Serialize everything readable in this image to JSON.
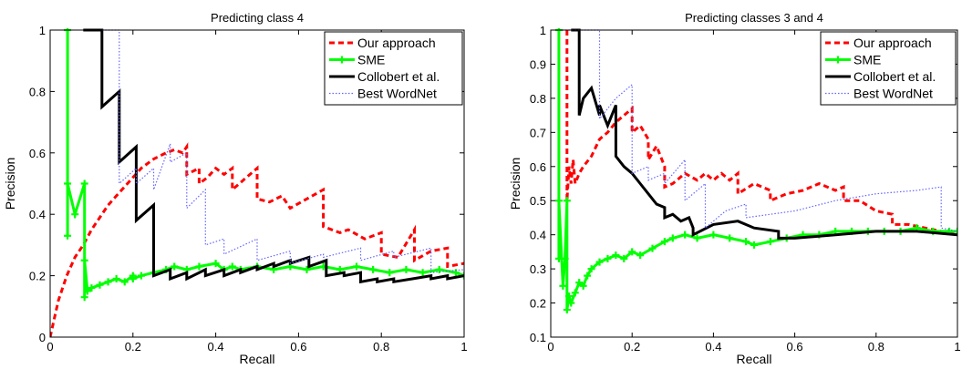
{
  "chart_data": [
    {
      "type": "line",
      "title": "Predicting class 4",
      "xlabel": "Recall",
      "ylabel": "Precision",
      "xlim": [
        0,
        1
      ],
      "ylim": [
        0,
        1
      ],
      "xticks": [
        0,
        0.2,
        0.4,
        0.6,
        0.8,
        1
      ],
      "yticks": [
        0,
        0.2,
        0.4,
        0.6,
        0.8,
        1
      ],
      "xtick_labels": [
        "0",
        "0.2",
        "0.4",
        "0.6",
        "0.8",
        "1"
      ],
      "ytick_labels": [
        "0",
        "0.2",
        "0.4",
        "0.6",
        "0.8",
        "1"
      ],
      "grid": false,
      "legend_position": "top-right",
      "series": [
        {
          "name": "Our approach",
          "color": "#ff0000",
          "style": "dashed",
          "x": [
            0.0,
            0.01,
            0.02,
            0.04,
            0.06,
            0.08,
            0.1,
            0.12,
            0.14,
            0.16,
            0.18,
            0.2,
            0.22,
            0.25,
            0.28,
            0.3,
            0.32,
            0.33,
            0.33,
            0.36,
            0.36,
            0.38,
            0.4,
            0.42,
            0.44,
            0.44,
            0.5,
            0.5,
            0.53,
            0.56,
            0.58,
            0.62,
            0.66,
            0.66,
            0.7,
            0.72,
            0.76,
            0.8,
            0.8,
            0.84,
            0.88,
            0.88,
            0.92,
            0.96,
            0.96,
            1.0
          ],
          "y": [
            0.0,
            0.06,
            0.12,
            0.2,
            0.26,
            0.3,
            0.35,
            0.39,
            0.43,
            0.46,
            0.49,
            0.52,
            0.55,
            0.58,
            0.6,
            0.61,
            0.6,
            0.62,
            0.53,
            0.55,
            0.5,
            0.52,
            0.55,
            0.53,
            0.55,
            0.48,
            0.55,
            0.45,
            0.44,
            0.46,
            0.42,
            0.45,
            0.48,
            0.36,
            0.34,
            0.35,
            0.32,
            0.34,
            0.27,
            0.26,
            0.35,
            0.25,
            0.28,
            0.29,
            0.23,
            0.24
          ]
        },
        {
          "name": "SME",
          "color": "#00ff00",
          "style": "solid-plus",
          "x": [
            0.042,
            0.042,
            0.042,
            0.06,
            0.083,
            0.083,
            0.083,
            0.09,
            0.1,
            0.12,
            0.14,
            0.16,
            0.18,
            0.2,
            0.2,
            0.22,
            0.25,
            0.28,
            0.3,
            0.33,
            0.36,
            0.4,
            0.42,
            0.44,
            0.46,
            0.5,
            0.54,
            0.58,
            0.62,
            0.66,
            0.7,
            0.74,
            0.78,
            0.82,
            0.86,
            0.9,
            0.94,
            0.98,
            1.0
          ],
          "y": [
            1.0,
            0.33,
            0.5,
            0.4,
            0.5,
            0.13,
            0.25,
            0.15,
            0.16,
            0.17,
            0.18,
            0.19,
            0.18,
            0.2,
            0.19,
            0.2,
            0.21,
            0.22,
            0.23,
            0.22,
            0.23,
            0.24,
            0.22,
            0.23,
            0.22,
            0.23,
            0.22,
            0.23,
            0.22,
            0.23,
            0.22,
            0.23,
            0.22,
            0.21,
            0.22,
            0.21,
            0.22,
            0.21,
            0.2
          ]
        },
        {
          "name": "Collobert et al.",
          "color": "#000000",
          "style": "solid",
          "x": [
            0.08,
            0.125,
            0.125,
            0.167,
            0.167,
            0.208,
            0.208,
            0.25,
            0.25,
            0.29,
            0.29,
            0.33,
            0.33,
            0.375,
            0.375,
            0.42,
            0.42,
            0.46,
            0.46,
            0.5,
            0.5,
            0.54,
            0.54,
            0.58,
            0.58,
            0.625,
            0.625,
            0.667,
            0.667,
            0.71,
            0.71,
            0.75,
            0.75,
            0.79,
            0.79,
            0.83,
            0.83,
            0.875,
            0.875,
            0.92,
            0.92,
            0.96,
            0.96,
            1.0
          ],
          "y": [
            1.0,
            1.0,
            0.75,
            0.8,
            0.57,
            0.62,
            0.38,
            0.43,
            0.2,
            0.22,
            0.19,
            0.21,
            0.19,
            0.22,
            0.2,
            0.22,
            0.2,
            0.22,
            0.21,
            0.23,
            0.22,
            0.24,
            0.23,
            0.25,
            0.24,
            0.26,
            0.23,
            0.25,
            0.2,
            0.21,
            0.2,
            0.21,
            0.18,
            0.19,
            0.18,
            0.19,
            0.18,
            0.19,
            0.19,
            0.2,
            0.19,
            0.2,
            0.19,
            0.2
          ]
        },
        {
          "name": "Best WordNet",
          "color": "#6666ff",
          "style": "dotted",
          "x": [
            0.125,
            0.167,
            0.167,
            0.208,
            0.208,
            0.25,
            0.25,
            0.29,
            0.29,
            0.33,
            0.33,
            0.375,
            0.375,
            0.42,
            0.42,
            0.5,
            0.5,
            0.58,
            0.58,
            0.66,
            0.66,
            0.75,
            0.75,
            0.83,
            0.83,
            0.92,
            0.92,
            1.0
          ],
          "y": [
            1.0,
            1.0,
            0.5,
            0.55,
            0.5,
            0.55,
            0.48,
            0.63,
            0.57,
            0.6,
            0.42,
            0.48,
            0.3,
            0.32,
            0.27,
            0.32,
            0.25,
            0.28,
            0.24,
            0.27,
            0.26,
            0.29,
            0.25,
            0.28,
            0.26,
            0.29,
            0.21,
            0.22
          ]
        }
      ]
    },
    {
      "type": "line",
      "title": "Predicting classes 3 and 4",
      "xlabel": "Recall",
      "ylabel": "Precision",
      "xlim": [
        0,
        1
      ],
      "ylim": [
        0.1,
        1
      ],
      "xticks": [
        0,
        0.2,
        0.4,
        0.6,
        0.8,
        1
      ],
      "yticks": [
        0.1,
        0.2,
        0.3,
        0.4,
        0.5,
        0.6,
        0.7,
        0.8,
        0.9,
        1
      ],
      "xtick_labels": [
        "0",
        "0.2",
        "0.4",
        "0.6",
        "0.8",
        "1"
      ],
      "ytick_labels": [
        "0.1",
        "0.2",
        "0.3",
        "0.4",
        "0.5",
        "0.6",
        "0.7",
        "0.8",
        "0.9",
        "1"
      ],
      "grid": false,
      "legend_position": "top-right",
      "series": [
        {
          "name": "Our approach",
          "color": "#ff0000",
          "style": "dashed",
          "x": [
            0.04,
            0.04,
            0.045,
            0.05,
            0.055,
            0.06,
            0.07,
            0.08,
            0.1,
            0.12,
            0.14,
            0.16,
            0.18,
            0.2,
            0.2,
            0.22,
            0.24,
            0.24,
            0.26,
            0.28,
            0.28,
            0.3,
            0.33,
            0.36,
            0.38,
            0.4,
            0.42,
            0.44,
            0.46,
            0.46,
            0.5,
            0.54,
            0.54,
            0.58,
            0.62,
            0.66,
            0.7,
            0.72,
            0.72,
            0.76,
            0.8,
            0.84,
            0.84,
            0.88,
            0.92,
            0.96,
            1.0
          ],
          "y": [
            1.0,
            0.5,
            0.6,
            0.55,
            0.62,
            0.55,
            0.58,
            0.6,
            0.63,
            0.68,
            0.7,
            0.73,
            0.75,
            0.77,
            0.7,
            0.72,
            0.68,
            0.62,
            0.66,
            0.6,
            0.54,
            0.55,
            0.58,
            0.56,
            0.58,
            0.56,
            0.58,
            0.56,
            0.58,
            0.52,
            0.55,
            0.53,
            0.5,
            0.52,
            0.53,
            0.55,
            0.53,
            0.54,
            0.5,
            0.5,
            0.47,
            0.46,
            0.43,
            0.43,
            0.42,
            0.41,
            0.4
          ]
        },
        {
          "name": "SME",
          "color": "#00ff00",
          "style": "solid-plus",
          "x": [
            0.02,
            0.02,
            0.02,
            0.03,
            0.035,
            0.04,
            0.04,
            0.045,
            0.05,
            0.06,
            0.07,
            0.08,
            0.09,
            0.1,
            0.12,
            0.14,
            0.16,
            0.18,
            0.2,
            0.22,
            0.25,
            0.28,
            0.3,
            0.33,
            0.36,
            0.4,
            0.44,
            0.48,
            0.5,
            0.54,
            0.58,
            0.62,
            0.66,
            0.7,
            0.74,
            0.78,
            0.82,
            0.86,
            0.9,
            0.94,
            0.98,
            1.0
          ],
          "y": [
            1.0,
            0.33,
            0.5,
            0.25,
            0.33,
            0.5,
            0.18,
            0.22,
            0.2,
            0.23,
            0.26,
            0.25,
            0.28,
            0.3,
            0.32,
            0.33,
            0.34,
            0.33,
            0.35,
            0.34,
            0.36,
            0.38,
            0.39,
            0.4,
            0.39,
            0.4,
            0.39,
            0.38,
            0.37,
            0.38,
            0.39,
            0.4,
            0.4,
            0.41,
            0.41,
            0.41,
            0.41,
            0.41,
            0.42,
            0.41,
            0.41,
            0.41
          ]
        },
        {
          "name": "Collobert et al.",
          "color": "#000000",
          "style": "solid",
          "x": [
            0.05,
            0.07,
            0.07,
            0.08,
            0.1,
            0.12,
            0.12,
            0.14,
            0.16,
            0.16,
            0.18,
            0.2,
            0.22,
            0.24,
            0.26,
            0.28,
            0.28,
            0.3,
            0.32,
            0.34,
            0.35,
            0.35,
            0.4,
            0.46,
            0.5,
            0.56,
            0.56,
            0.6,
            0.7,
            0.8,
            0.9,
            1.0
          ],
          "y": [
            1.0,
            1.0,
            0.75,
            0.8,
            0.83,
            0.75,
            0.78,
            0.72,
            0.78,
            0.63,
            0.6,
            0.58,
            0.55,
            0.52,
            0.49,
            0.48,
            0.45,
            0.46,
            0.44,
            0.45,
            0.42,
            0.4,
            0.43,
            0.44,
            0.42,
            0.41,
            0.39,
            0.39,
            0.4,
            0.41,
            0.41,
            0.4
          ]
        },
        {
          "name": "Best WordNet",
          "color": "#6666ff",
          "style": "dotted",
          "x": [
            0.02,
            0.07,
            0.12,
            0.12,
            0.16,
            0.2,
            0.2,
            0.24,
            0.24,
            0.28,
            0.28,
            0.33,
            0.33,
            0.38,
            0.38,
            0.43,
            0.48,
            0.48,
            0.6,
            0.7,
            0.8,
            0.9,
            0.96,
            0.96,
            1.0
          ],
          "y": [
            1.0,
            1.0,
            1.0,
            0.74,
            0.8,
            0.84,
            0.58,
            0.6,
            0.56,
            0.58,
            0.55,
            0.62,
            0.5,
            0.55,
            0.42,
            0.47,
            0.49,
            0.45,
            0.47,
            0.5,
            0.52,
            0.53,
            0.54,
            0.42,
            0.41
          ]
        }
      ]
    }
  ]
}
